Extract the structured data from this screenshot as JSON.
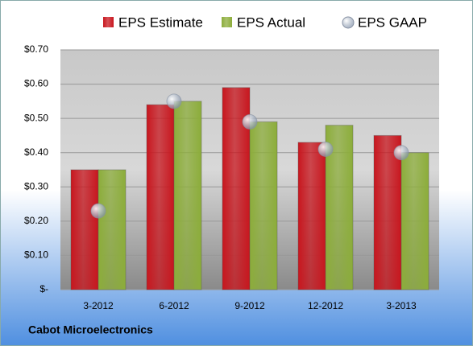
{
  "chart_data": {
    "type": "bar",
    "categories": [
      "3-2012",
      "6-2012",
      "9-2012",
      "12-2012",
      "3-2013"
    ],
    "series": [
      {
        "name": "EPS Estimate",
        "color": "#c8161e",
        "type": "bar",
        "values": [
          0.35,
          0.54,
          0.59,
          0.43,
          0.45
        ]
      },
      {
        "name": "EPS Actual",
        "color": "#8cad3a",
        "type": "bar",
        "values": [
          0.35,
          0.55,
          0.49,
          0.48,
          0.4
        ]
      },
      {
        "name": "EPS GAAP",
        "color": "#aab4c4",
        "type": "scatter",
        "values": [
          0.23,
          0.55,
          0.49,
          0.41,
          0.4
        ]
      }
    ],
    "ylim": [
      0,
      0.7
    ],
    "yticks": [
      {
        "value": 0,
        "label": "$-"
      },
      {
        "value": 0.1,
        "label": "$0.10"
      },
      {
        "value": 0.2,
        "label": "$0.20"
      },
      {
        "value": 0.3,
        "label": "$0.30"
      },
      {
        "value": 0.4,
        "label": "$0.40"
      },
      {
        "value": 0.5,
        "label": "$0.50"
      },
      {
        "value": 0.6,
        "label": "$0.60"
      },
      {
        "value": 0.7,
        "label": "$0.70"
      }
    ],
    "grid": true,
    "legend": "top",
    "footer": "Cabot Microelectronics"
  }
}
